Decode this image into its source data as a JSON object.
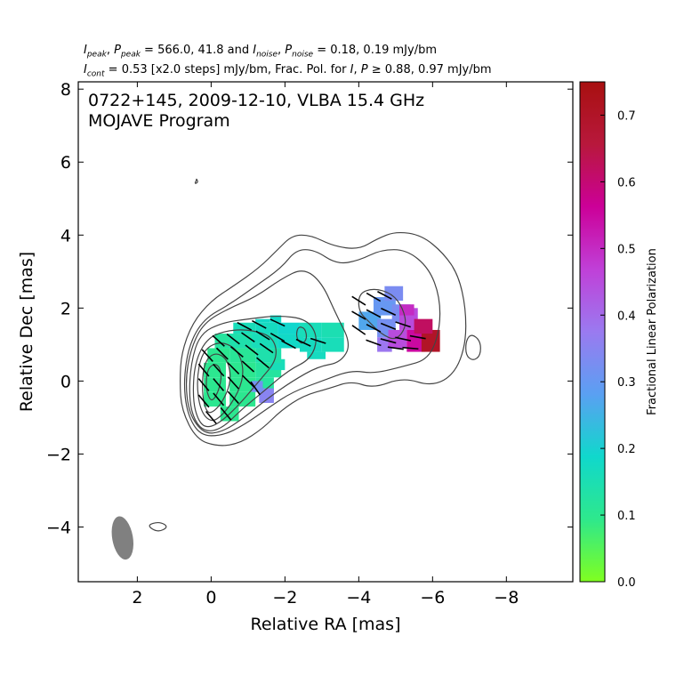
{
  "header": {
    "line1": {
      "i_peak": "I",
      "i_peak_sub": "peak",
      "p_peak": "P",
      "p_peak_sub": "peak",
      "mid1": " = 566.0, 41.8 and ",
      "i_noise": "I",
      "i_noise_sub": "noise",
      "p_noise": "P",
      "p_noise_sub": "noise",
      "tail": " = 0.18, 0.19 mJy/bm"
    },
    "line2": {
      "i_cont": "I",
      "i_cont_sub": "cont",
      "mid": " = 0.53 [x2.0 steps] mJy/bm, Frac. Pol. for ",
      "i": "I",
      "p": "P",
      "tail": " ≥ 0.88, 0.97 mJy/bm"
    }
  },
  "chart_data": {
    "type": "contour",
    "title": "0722+145, 2009-12-10, VLBA 15.4 GHz",
    "subtitle": "MOJAVE Program",
    "xlabel": "Relative RA [mas]",
    "ylabel": "Relative Dec [mas]",
    "xlim": [
      3.6,
      -9.8
    ],
    "ylim": [
      -5.5,
      8.2
    ],
    "xticks": [
      2,
      0,
      -2,
      -4,
      -6,
      -8
    ],
    "xtick_labels": [
      "2",
      "0",
      "−2",
      "−4",
      "−6",
      "−8"
    ],
    "yticks": [
      8,
      6,
      4,
      2,
      0,
      -2,
      -4
    ],
    "ytick_labels": [
      "8",
      "6",
      "4",
      "2",
      "0",
      "−2",
      "−4"
    ],
    "colorbar": {
      "label": "Fractional Linear Polarization",
      "ticks": [
        0.0,
        0.1,
        0.2,
        0.3,
        0.4,
        0.5,
        0.6,
        0.7
      ],
      "tick_labels": [
        "0.0",
        "0.1",
        "0.2",
        "0.3",
        "0.4",
        "0.5",
        "0.6",
        "0.7"
      ],
      "range": [
        0.0,
        0.75
      ],
      "colors": [
        "#80ff20",
        "#2ee88c",
        "#10d8cc",
        "#5aa0f2",
        "#9a7af0",
        "#c040d8",
        "#cc0098",
        "#b8183c",
        "#a81010"
      ]
    },
    "core": {
      "x": 0.0,
      "y": 0.0
    },
    "beam": {
      "x": 2.4,
      "y": -4.3,
      "major_mas": 1.2,
      "minor_mas": 0.56,
      "pa_deg": -10,
      "color": "#808080"
    },
    "contour_color": "#444444",
    "contours": [
      [
        [
          0.4,
          -1.6
        ],
        [
          -0.2,
          -1.8
        ],
        [
          -0.8,
          -1.7
        ],
        [
          -1.4,
          -1.3
        ],
        [
          -1.9,
          -0.8
        ],
        [
          -2.5,
          -0.4
        ],
        [
          -3.2,
          -0.2
        ],
        [
          -3.8,
          0.0
        ],
        [
          -4.4,
          -0.2
        ],
        [
          -5.2,
          0.1
        ],
        [
          -6.0,
          -0.15
        ],
        [
          -6.6,
          0.2
        ],
        [
          -6.9,
          1.0
        ],
        [
          -6.9,
          2.0
        ],
        [
          -6.7,
          2.9
        ],
        [
          -6.3,
          3.5
        ],
        [
          -5.7,
          4.0
        ],
        [
          -5.0,
          4.1
        ],
        [
          -4.5,
          3.9
        ],
        [
          -4.0,
          3.6
        ],
        [
          -3.3,
          3.7
        ],
        [
          -2.7,
          4.0
        ],
        [
          -2.2,
          4.0
        ],
        [
          -1.8,
          3.6
        ],
        [
          -1.3,
          3.1
        ],
        [
          -0.6,
          2.6
        ],
        [
          0.0,
          2.2
        ],
        [
          0.5,
          1.6
        ],
        [
          0.8,
          0.8
        ],
        [
          0.85,
          0.0
        ],
        [
          0.8,
          -0.8
        ]
      ],
      [
        [
          0.3,
          -1.5
        ],
        [
          -0.3,
          -1.5
        ],
        [
          -0.9,
          -1.2
        ],
        [
          -1.6,
          -0.7
        ],
        [
          -2.2,
          -0.3
        ],
        [
          -3.0,
          0.0
        ],
        [
          -3.8,
          0.3
        ],
        [
          -4.4,
          0.2
        ],
        [
          -5.2,
          0.4
        ],
        [
          -5.9,
          0.6
        ],
        [
          -6.2,
          1.4
        ],
        [
          -6.2,
          2.3
        ],
        [
          -5.9,
          3.1
        ],
        [
          -5.3,
          3.6
        ],
        [
          -4.6,
          3.6
        ],
        [
          -4.0,
          3.3
        ],
        [
          -3.4,
          3.2
        ],
        [
          -2.8,
          3.6
        ],
        [
          -2.3,
          3.6
        ],
        [
          -1.9,
          3.1
        ],
        [
          -1.2,
          2.6
        ],
        [
          -0.5,
          2.1
        ],
        [
          0.2,
          1.7
        ],
        [
          0.6,
          1.0
        ],
        [
          0.75,
          0.0
        ],
        [
          0.65,
          -0.9
        ]
      ],
      [
        [
          0.2,
          -1.45
        ],
        [
          -0.3,
          -1.4
        ],
        [
          -0.9,
          -1.0
        ],
        [
          -1.5,
          -0.5
        ],
        [
          -2.2,
          0.0
        ],
        [
          -2.9,
          0.4
        ],
        [
          -3.5,
          0.5
        ],
        [
          -3.8,
          1.0
        ],
        [
          -3.4,
          1.8
        ],
        [
          -3.0,
          2.7
        ],
        [
          -2.5,
          3.1
        ],
        [
          -1.9,
          2.8
        ],
        [
          -1.2,
          2.3
        ],
        [
          -0.5,
          2.0
        ],
        [
          0.2,
          1.6
        ],
        [
          0.55,
          0.9
        ],
        [
          0.7,
          0.0
        ],
        [
          0.6,
          -0.9
        ]
      ],
      [
        [
          0.15,
          -1.4
        ],
        [
          -0.3,
          -1.3
        ],
        [
          -0.8,
          -0.8
        ],
        [
          -1.4,
          -0.3
        ],
        [
          -2.1,
          0.3
        ],
        [
          -2.7,
          0.6
        ],
        [
          -2.9,
          1.2
        ],
        [
          -2.6,
          1.7
        ],
        [
          -1.8,
          1.8
        ],
        [
          -1.0,
          1.7
        ],
        [
          -0.3,
          1.6
        ],
        [
          0.3,
          1.3
        ],
        [
          0.55,
          0.5
        ],
        [
          0.6,
          -0.5
        ],
        [
          0.45,
          -1.1
        ]
      ],
      [
        [
          0.1,
          -1.3
        ],
        [
          -0.3,
          -1.1
        ],
        [
          -0.8,
          -0.6
        ],
        [
          -1.3,
          0.0
        ],
        [
          -1.8,
          0.6
        ],
        [
          -1.7,
          1.2
        ],
        [
          -1.1,
          1.4
        ],
        [
          -0.5,
          1.4
        ],
        [
          0.1,
          1.2
        ],
        [
          0.45,
          0.5
        ],
        [
          0.5,
          -0.5
        ],
        [
          0.35,
          -1.1
        ]
      ],
      [
        [
          0.0,
          -1.15
        ],
        [
          -0.35,
          -0.9
        ],
        [
          -0.75,
          -0.3
        ],
        [
          -0.9,
          0.3
        ],
        [
          -0.7,
          0.9
        ],
        [
          -0.2,
          1.1
        ],
        [
          0.25,
          0.8
        ],
        [
          0.4,
          0.0
        ],
        [
          0.3,
          -0.8
        ]
      ],
      [
        [
          0.0,
          -0.9
        ],
        [
          -0.3,
          -0.6
        ],
        [
          -0.55,
          0.0
        ],
        [
          -0.45,
          0.6
        ],
        [
          -0.1,
          0.8
        ],
        [
          0.2,
          0.5
        ],
        [
          0.25,
          -0.3
        ],
        [
          0.15,
          -0.8
        ]
      ],
      [
        [
          0.0,
          -0.6
        ],
        [
          -0.2,
          -0.3
        ],
        [
          -0.3,
          0.2
        ],
        [
          -0.15,
          0.5
        ],
        [
          0.1,
          0.35
        ],
        [
          0.15,
          -0.2
        ]
      ],
      [
        [
          -4.0,
          2.4
        ],
        [
          -4.4,
          2.55
        ],
        [
          -4.9,
          2.4
        ],
        [
          -5.2,
          2.0
        ],
        [
          -5.3,
          1.5
        ],
        [
          -5.0,
          1.1
        ],
        [
          -4.6,
          1.3
        ],
        [
          -4.3,
          1.6
        ],
        [
          -4.0,
          1.9
        ]
      ],
      [
        [
          -2.35,
          1.5
        ],
        [
          -2.55,
          1.45
        ],
        [
          -2.6,
          1.15
        ],
        [
          -2.45,
          1.0
        ],
        [
          -2.3,
          1.2
        ]
      ],
      [
        [
          -7.05,
          1.3
        ],
        [
          -7.3,
          1.1
        ],
        [
          -7.3,
          0.7
        ],
        [
          -7.1,
          0.55
        ],
        [
          -6.9,
          0.7
        ],
        [
          -6.9,
          1.1
        ]
      ],
      [
        [
          1.45,
          -4.15
        ],
        [
          1.15,
          -4.0
        ],
        [
          1.4,
          -3.85
        ],
        [
          1.75,
          -3.95
        ]
      ],
      [
        [
          0.4,
          5.55
        ],
        [
          0.35,
          5.45
        ],
        [
          0.45,
          5.4
        ],
        [
          0.4,
          5.5
        ]
      ]
    ],
    "polarization_cells": [
      {
        "x": -0.25,
        "y": -1.1,
        "w": 0.5,
        "h": 0.4,
        "frac": 0.1
      },
      {
        "x": 0.2,
        "y": -0.7,
        "w": 0.6,
        "h": 0.4,
        "frac": 0.1
      },
      {
        "x": -0.5,
        "y": -0.7,
        "w": 0.7,
        "h": 0.4,
        "frac": 0.1
      },
      {
        "x": 0.2,
        "y": -0.3,
        "w": 0.6,
        "h": 0.4,
        "frac": 0.1
      },
      {
        "x": -0.5,
        "y": -0.3,
        "w": 0.7,
        "h": 0.4,
        "frac": 0.1
      },
      {
        "x": -1.2,
        "y": -0.3,
        "w": 0.5,
        "h": 0.4,
        "frac": 0.12
      },
      {
        "x": 0.2,
        "y": 0.1,
        "w": 0.6,
        "h": 0.4,
        "frac": 0.1
      },
      {
        "x": -0.5,
        "y": 0.1,
        "w": 0.7,
        "h": 0.4,
        "frac": 0.1
      },
      {
        "x": -1.2,
        "y": 0.1,
        "w": 0.7,
        "h": 0.4,
        "frac": 0.12
      },
      {
        "x": -1.6,
        "y": 0.3,
        "w": 0.4,
        "h": 0.3,
        "frac": 0.16
      },
      {
        "x": 0.1,
        "y": 0.5,
        "w": 0.6,
        "h": 0.4,
        "frac": 0.1
      },
      {
        "x": -0.5,
        "y": 0.5,
        "w": 0.7,
        "h": 0.4,
        "frac": 0.11
      },
      {
        "x": -1.2,
        "y": 0.5,
        "w": 0.7,
        "h": 0.4,
        "frac": 0.14
      },
      {
        "x": -0.1,
        "y": 0.9,
        "w": 0.6,
        "h": 0.4,
        "frac": 0.12
      },
      {
        "x": -0.5,
        "y": 0.9,
        "w": 0.6,
        "h": 0.4,
        "frac": 0.14
      },
      {
        "x": -1.1,
        "y": 0.9,
        "w": 0.7,
        "h": 0.4,
        "frac": 0.16
      },
      {
        "x": -1.8,
        "y": 0.9,
        "w": 0.7,
        "h": 0.4,
        "frac": 0.18
      },
      {
        "x": -0.6,
        "y": 1.3,
        "w": 0.6,
        "h": 0.3,
        "frac": 0.16
      },
      {
        "x": -1.2,
        "y": 1.3,
        "w": 0.6,
        "h": 0.3,
        "frac": 0.17
      },
      {
        "x": -1.8,
        "y": 1.3,
        "w": 0.6,
        "h": 0.3,
        "frac": 0.19
      },
      {
        "x": -1.2,
        "y": 1.6,
        "w": 0.4,
        "h": 0.1,
        "frac": 0.18
      },
      {
        "x": -1.6,
        "y": 1.6,
        "w": 0.3,
        "h": 0.2,
        "frac": 0.18
      },
      {
        "x": -2.4,
        "y": 1.2,
        "w": 0.6,
        "h": 0.4,
        "frac": 0.16
      },
      {
        "x": -2.4,
        "y": 0.8,
        "w": 0.6,
        "h": 0.4,
        "frac": 0.17
      },
      {
        "x": -3.0,
        "y": 0.8,
        "w": 0.6,
        "h": 0.4,
        "frac": 0.16
      },
      {
        "x": -3.0,
        "y": 1.2,
        "w": 0.6,
        "h": 0.4,
        "frac": 0.15
      },
      {
        "x": -2.6,
        "y": 0.6,
        "w": 0.5,
        "h": 0.2,
        "frac": 0.17
      },
      {
        "x": -1.3,
        "y": -0.6,
        "w": 0.4,
        "h": 0.4,
        "frac": 0.35
      },
      {
        "x": -1.1,
        "y": -0.3,
        "w": 0.3,
        "h": 0.3,
        "frac": 0.32
      },
      {
        "x": -4.0,
        "y": 1.4,
        "w": 0.6,
        "h": 0.5,
        "frac": 0.27
      },
      {
        "x": -4.4,
        "y": 1.8,
        "w": 0.6,
        "h": 0.5,
        "frac": 0.3
      },
      {
        "x": -4.5,
        "y": 1.2,
        "w": 0.5,
        "h": 0.5,
        "frac": 0.32
      },
      {
        "x": -4.9,
        "y": 1.6,
        "w": 0.5,
        "h": 0.5,
        "frac": 0.33
      },
      {
        "x": -4.7,
        "y": 2.2,
        "w": 0.5,
        "h": 0.4,
        "frac": 0.33
      },
      {
        "x": -4.5,
        "y": 0.8,
        "w": 0.4,
        "h": 0.4,
        "frac": 0.38
      },
      {
        "x": -4.8,
        "y": 0.9,
        "w": 0.5,
        "h": 0.5,
        "frac": 0.45
      },
      {
        "x": -5.1,
        "y": 1.4,
        "w": 0.5,
        "h": 0.6,
        "frac": 0.45
      },
      {
        "x": -5.3,
        "y": 0.8,
        "w": 0.5,
        "h": 0.6,
        "frac": 0.55
      },
      {
        "x": -5.7,
        "y": 0.8,
        "w": 0.5,
        "h": 0.6,
        "frac": 0.7
      },
      {
        "x": -5.5,
        "y": 1.3,
        "w": 0.5,
        "h": 0.4,
        "frac": 0.62
      },
      {
        "x": -5.1,
        "y": 1.8,
        "w": 0.4,
        "h": 0.3,
        "frac": 0.5
      }
    ],
    "evpa_vectors": [
      {
        "x": 0.0,
        "y": -1.0,
        "angle": -50
      },
      {
        "x": -0.4,
        "y": -0.9,
        "angle": -50
      },
      {
        "x": 0.2,
        "y": -0.55,
        "angle": -50
      },
      {
        "x": -0.2,
        "y": -0.5,
        "angle": -50
      },
      {
        "x": -0.6,
        "y": -0.45,
        "angle": -48
      },
      {
        "x": 0.2,
        "y": -0.1,
        "angle": -50
      },
      {
        "x": -0.2,
        "y": -0.1,
        "angle": -50
      },
      {
        "x": -0.6,
        "y": -0.05,
        "angle": -48
      },
      {
        "x": -1.0,
        "y": 0.0,
        "angle": -45
      },
      {
        "x": 0.2,
        "y": 0.3,
        "angle": -50
      },
      {
        "x": -0.2,
        "y": 0.3,
        "angle": -48
      },
      {
        "x": -0.6,
        "y": 0.35,
        "angle": -45
      },
      {
        "x": -1.0,
        "y": 0.4,
        "angle": -42
      },
      {
        "x": -1.4,
        "y": 0.5,
        "angle": -40
      },
      {
        "x": 0.1,
        "y": 0.7,
        "angle": -48
      },
      {
        "x": -0.3,
        "y": 0.75,
        "angle": -45
      },
      {
        "x": -0.7,
        "y": 0.8,
        "angle": -40
      },
      {
        "x": -1.1,
        "y": 0.85,
        "angle": -38
      },
      {
        "x": -1.5,
        "y": 0.9,
        "angle": -35
      },
      {
        "x": -0.2,
        "y": 1.1,
        "angle": -42
      },
      {
        "x": -0.6,
        "y": 1.15,
        "angle": -38
      },
      {
        "x": -1.0,
        "y": 1.2,
        "angle": -35
      },
      {
        "x": -1.4,
        "y": 1.25,
        "angle": -32
      },
      {
        "x": -1.8,
        "y": 1.2,
        "angle": -30
      },
      {
        "x": -0.9,
        "y": 1.5,
        "angle": -28
      },
      {
        "x": -1.3,
        "y": 1.55,
        "angle": -28
      },
      {
        "x": -1.8,
        "y": 1.6,
        "angle": -25
      },
      {
        "x": -2.1,
        "y": 1.0,
        "angle": -28
      },
      {
        "x": -2.5,
        "y": 1.05,
        "angle": -25
      },
      {
        "x": -2.9,
        "y": 1.1,
        "angle": -18
      },
      {
        "x": -1.2,
        "y": -0.2,
        "angle": -55
      },
      {
        "x": -4.0,
        "y": 2.2,
        "angle": -32
      },
      {
        "x": -4.4,
        "y": 2.3,
        "angle": -30
      },
      {
        "x": -4.7,
        "y": 2.35,
        "angle": -28
      },
      {
        "x": -4.0,
        "y": 1.8,
        "angle": -30
      },
      {
        "x": -4.4,
        "y": 1.85,
        "angle": -28
      },
      {
        "x": -4.8,
        "y": 1.9,
        "angle": -25
      },
      {
        "x": -4.0,
        "y": 1.4,
        "angle": -35
      },
      {
        "x": -4.4,
        "y": 1.45,
        "angle": -28
      },
      {
        "x": -4.8,
        "y": 1.5,
        "angle": -22
      },
      {
        "x": -5.2,
        "y": 1.55,
        "angle": -18
      },
      {
        "x": -4.4,
        "y": 1.05,
        "angle": -20
      },
      {
        "x": -4.8,
        "y": 1.1,
        "angle": -15
      },
      {
        "x": -5.2,
        "y": 1.15,
        "angle": -12
      },
      {
        "x": -5.6,
        "y": 1.2,
        "angle": -10
      },
      {
        "x": -5.0,
        "y": 0.9,
        "angle": -8
      },
      {
        "x": -5.4,
        "y": 0.9,
        "angle": -5
      }
    ]
  }
}
